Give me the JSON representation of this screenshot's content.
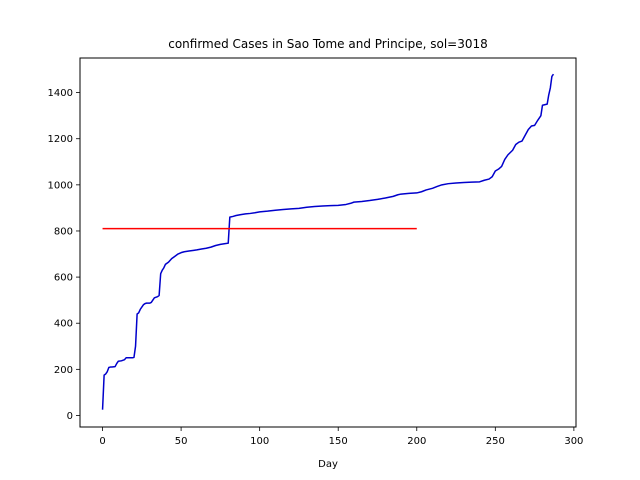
{
  "chart_data": {
    "type": "line",
    "title": "confirmed Cases in Sao Tome and Principe, sol=3018",
    "xlabel": "Day",
    "ylabel": "",
    "xlim": [
      -14.35,
      301.35
    ],
    "ylim": [
      -50,
      1550
    ],
    "xticks": [
      0,
      50,
      100,
      150,
      200,
      250,
      300
    ],
    "yticks": [
      0,
      200,
      400,
      600,
      800,
      1000,
      1200,
      1400
    ],
    "grid": false,
    "series": [
      {
        "color": "#0000cc",
        "points": [
          [
            0,
            25
          ],
          [
            1,
            175
          ],
          [
            2,
            180
          ],
          [
            3,
            190
          ],
          [
            4,
            208
          ],
          [
            5,
            210
          ],
          [
            6,
            210
          ],
          [
            8,
            212
          ],
          [
            9,
            225
          ],
          [
            10,
            235
          ],
          [
            12,
            237
          ],
          [
            14,
            242
          ],
          [
            15,
            250
          ],
          [
            17,
            250
          ],
          [
            19,
            250
          ],
          [
            20,
            252
          ],
          [
            21,
            300
          ],
          [
            22,
            440
          ],
          [
            23,
            445
          ],
          [
            24,
            460
          ],
          [
            26,
            480
          ],
          [
            27,
            485
          ],
          [
            28,
            487
          ],
          [
            30,
            487
          ],
          [
            31,
            490
          ],
          [
            33,
            510
          ],
          [
            35,
            515
          ],
          [
            36,
            520
          ],
          [
            37,
            615
          ],
          [
            38,
            630
          ],
          [
            39,
            640
          ],
          [
            40,
            655
          ],
          [
            42,
            665
          ],
          [
            44,
            680
          ],
          [
            46,
            690
          ],
          [
            48,
            700
          ],
          [
            50,
            706
          ],
          [
            52,
            710
          ],
          [
            55,
            713
          ],
          [
            58,
            716
          ],
          [
            60,
            718
          ],
          [
            63,
            722
          ],
          [
            66,
            725
          ],
          [
            69,
            730
          ],
          [
            72,
            737
          ],
          [
            75,
            742
          ],
          [
            78,
            745
          ],
          [
            80,
            747
          ],
          [
            81,
            860
          ],
          [
            83,
            863
          ],
          [
            85,
            867
          ],
          [
            88,
            871
          ],
          [
            91,
            874
          ],
          [
            94,
            876
          ],
          [
            97,
            879
          ],
          [
            100,
            883
          ],
          [
            105,
            886
          ],
          [
            110,
            890
          ],
          [
            115,
            893
          ],
          [
            120,
            896
          ],
          [
            125,
            898
          ],
          [
            130,
            903
          ],
          [
            135,
            906
          ],
          [
            140,
            908
          ],
          [
            145,
            910
          ],
          [
            150,
            911
          ],
          [
            155,
            915
          ],
          [
            158,
            920
          ],
          [
            160,
            925
          ],
          [
            165,
            928
          ],
          [
            170,
            932
          ],
          [
            175,
            937
          ],
          [
            180,
            943
          ],
          [
            185,
            950
          ],
          [
            188,
            957
          ],
          [
            190,
            960
          ],
          [
            195,
            963
          ],
          [
            200,
            965
          ],
          [
            203,
            970
          ],
          [
            206,
            978
          ],
          [
            210,
            985
          ],
          [
            213,
            993
          ],
          [
            216,
            1000
          ],
          [
            220,
            1005
          ],
          [
            225,
            1008
          ],
          [
            230,
            1010
          ],
          [
            235,
            1012
          ],
          [
            240,
            1013
          ],
          [
            243,
            1020
          ],
          [
            246,
            1025
          ],
          [
            248,
            1035
          ],
          [
            250,
            1060
          ],
          [
            252,
            1068
          ],
          [
            254,
            1080
          ],
          [
            256,
            1110
          ],
          [
            258,
            1130
          ],
          [
            261,
            1150
          ],
          [
            263,
            1175
          ],
          [
            265,
            1185
          ],
          [
            267,
            1190
          ],
          [
            269,
            1215
          ],
          [
            271,
            1240
          ],
          [
            273,
            1255
          ],
          [
            275,
            1258
          ],
          [
            277,
            1280
          ],
          [
            279,
            1300
          ],
          [
            280,
            1345
          ],
          [
            283,
            1350
          ],
          [
            284,
            1390
          ],
          [
            285,
            1420
          ],
          [
            286,
            1470
          ],
          [
            287,
            1480
          ]
        ]
      },
      {
        "color": "#ff0000",
        "points": [
          [
            0,
            810
          ],
          [
            200,
            810
          ]
        ]
      }
    ]
  }
}
